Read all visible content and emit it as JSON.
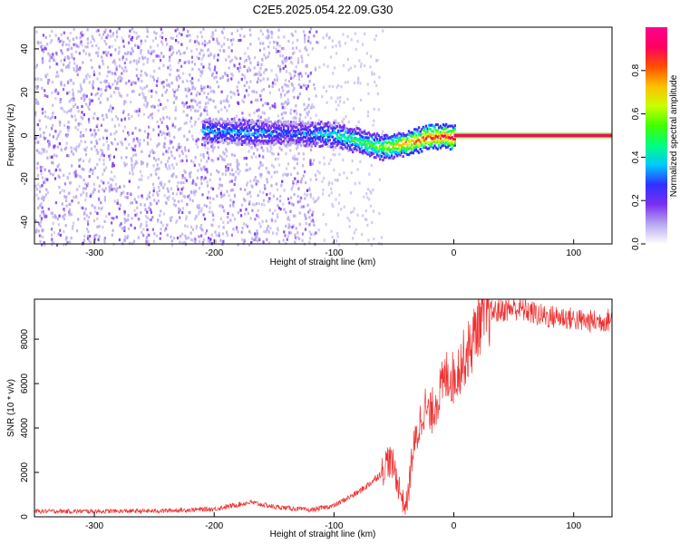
{
  "figure": {
    "title": "C2E5.2025.054.22.09.G30"
  },
  "chart_data": [
    {
      "type": "heatmap",
      "title": "",
      "xlabel": "Height of straight line (km)",
      "ylabel": "Frequency (Hz)",
      "xlim": [
        -350,
        132
      ],
      "ylim": [
        -50,
        50
      ],
      "x_ticks": [
        -300,
        -200,
        -100,
        0,
        100
      ],
      "x_tick_labels": [
        "-300",
        "-200",
        "-100",
        "0",
        "100"
      ],
      "y_ticks": [
        -40,
        -20,
        0,
        20,
        40
      ],
      "y_tick_labels": [
        "-40",
        "-20",
        "0",
        "20",
        "40"
      ],
      "colorbar": {
        "label": "Normalized spectral amplitude",
        "range": [
          0,
          1
        ],
        "ticks": [
          0.0,
          0.2,
          0.4,
          0.6,
          0.8
        ],
        "tick_labels": [
          "0.0",
          "0.2",
          "0.4",
          "0.6",
          "0.8"
        ],
        "colormap": [
          "#ffffff",
          "#b8a8f0",
          "#7a30f0",
          "#3030ff",
          "#00c8ff",
          "#00ff80",
          "#40ff00",
          "#c8ff00",
          "#ffc000",
          "#ff5000",
          "#ff0060",
          "#ff0090"
        ]
      },
      "features": [
        {
          "name": "noise",
          "x_range": [
            -350,
            -115
          ],
          "freq_range": [
            -50,
            50
          ],
          "level": 0.15
        },
        {
          "name": "fringe",
          "x": [
            -210,
            -170,
            -130,
            -100,
            -80,
            -60,
            -40,
            -20,
            0
          ],
          "freq": [
            3,
            2,
            1.5,
            1,
            -2,
            -5,
            -3,
            0,
            0
          ],
          "level": [
            0.35,
            0.35,
            0.3,
            0.45,
            0.5,
            0.6,
            0.75,
            0.85,
            0.9
          ]
        },
        {
          "name": "carrier-line",
          "x_range": [
            0,
            132
          ],
          "freq": 0,
          "level": 0.95
        }
      ],
      "grid": false
    },
    {
      "type": "line",
      "title": "",
      "xlabel": "Height of straight line (km)",
      "ylabel": "SNR (10 * v/v)",
      "xlim": [
        -350,
        132
      ],
      "ylim": [
        0,
        9800
      ],
      "x_ticks": [
        -300,
        -200,
        -100,
        0,
        100
      ],
      "x_tick_labels": [
        "-300",
        "-200",
        "-100",
        "0",
        "100"
      ],
      "y_ticks": [
        0,
        2000,
        4000,
        6000,
        8000
      ],
      "y_tick_labels": [
        "0",
        "2000",
        "4000",
        "6000",
        "8000"
      ],
      "color": "#ee3030",
      "series": [
        {
          "x": [
            -350,
            -300,
            -250,
            -200,
            -170,
            -150,
            -120,
            -100,
            -80,
            -70,
            -60,
            -55,
            -50,
            -45,
            -42,
            -40,
            -38,
            -35,
            -30,
            -25,
            -20,
            -15,
            -10,
            -5,
            0,
            5,
            10,
            15,
            20,
            30,
            40,
            50,
            60,
            70,
            80,
            90,
            100,
            110,
            120,
            132
          ],
          "y": [
            250,
            250,
            260,
            350,
            650,
            450,
            300,
            500,
            1100,
            1500,
            2000,
            2600,
            2200,
            1200,
            600,
            500,
            1000,
            2700,
            3800,
            5000,
            4500,
            5200,
            5800,
            6500,
            6200,
            6800,
            7300,
            7800,
            8700,
            9200,
            9300,
            9400,
            9300,
            9100,
            9000,
            9000,
            8900,
            8800,
            8800,
            8900
          ]
        }
      ],
      "grid": false
    }
  ]
}
